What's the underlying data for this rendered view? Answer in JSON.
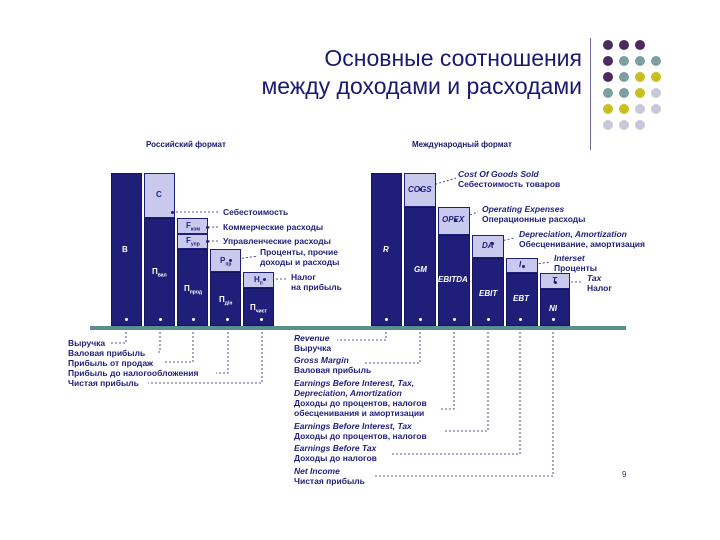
{
  "title": {
    "line1": "Основные соотношения",
    "line2": "между доходами и расходами"
  },
  "russian": {
    "heading": "Российский формат",
    "bars": {
      "v": "В",
      "c": "С",
      "pval": "П",
      "pval_sub": "вал",
      "fkom": "F",
      "fkom_sub": "ком",
      "fupr": "F",
      "fupr_sub": "упр",
      "pprod": "П",
      "pprod_sub": "прод",
      "rpr": "Р",
      "rpr_sub": "пр",
      "pdn": "П",
      "pdn_sub": "д/н",
      "hp": "Н",
      "hp_sub": "п",
      "pchist": "П",
      "pchist_sub": "чист"
    },
    "right_notes": {
      "cost": "Себестоимость",
      "commercial": "Коммерческие расходы",
      "admin": "Управленческие расходы",
      "other1": "Проценты, прочие",
      "other2": "доходы и расходы",
      "tax1": "Налог",
      "tax2": "на прибыль"
    },
    "bottom_notes": [
      "Выручка",
      "Валовая прибыль",
      "Прибыль от продаж",
      "Прибыль до налогообложения",
      "Чистая прибыль"
    ]
  },
  "international": {
    "heading": "Международный формат",
    "bars": {
      "r": "R",
      "cogs": "COGS",
      "gm": "GM",
      "opex": "OPEX",
      "ebitda": "EBITDA",
      "da": "DA",
      "ebit": "EBIT",
      "i": "I",
      "ebt": "EBT",
      "t": "T",
      "ni": "NI"
    },
    "right_notes": {
      "cogs_en": "Cost Of Goods Sold",
      "cogs_ru": "Себестоимость товаров",
      "opex_en": "Operating Expenses",
      "opex_ru": "Операционные расходы",
      "da_en": "Depreciation, Amortization",
      "da_ru": "Обесценивание, амортизация",
      "i_en": "Interset",
      "i_ru": "Проценты",
      "t_en": "Tax",
      "t_ru": "Налог"
    },
    "bottom_notes": {
      "rev_en": "Revenue",
      "rev_ru": "Выручка",
      "gm_en": "Gross Margin",
      "gm_ru": "Валовая прибыль",
      "ebitda_en1": "Earnings Before Interest, Tax,",
      "ebitda_en2": "Depreciation, Amortization",
      "ebitda_ru1": "Доходы до процентов, налогов",
      "ebitda_ru2": "обесценивания и амортизации",
      "ebit_en": "Earnings Before Interest, Tax",
      "ebit_ru": "Доходы до процентов, налогов",
      "ebt_en": "Earnings Before Tax",
      "ebt_ru": "Доходы до налогов",
      "ni_en": "Net Income",
      "ni_ru": "Чистая прибыль"
    }
  },
  "page_number": "9",
  "colors": {
    "navy": "#1f1f7a",
    "lavender": "#c9c9ee",
    "teal": "#5b8f8f",
    "purple": "#4b2a5e",
    "olive": "#c8c020",
    "gray": "#c8c8d8"
  }
}
